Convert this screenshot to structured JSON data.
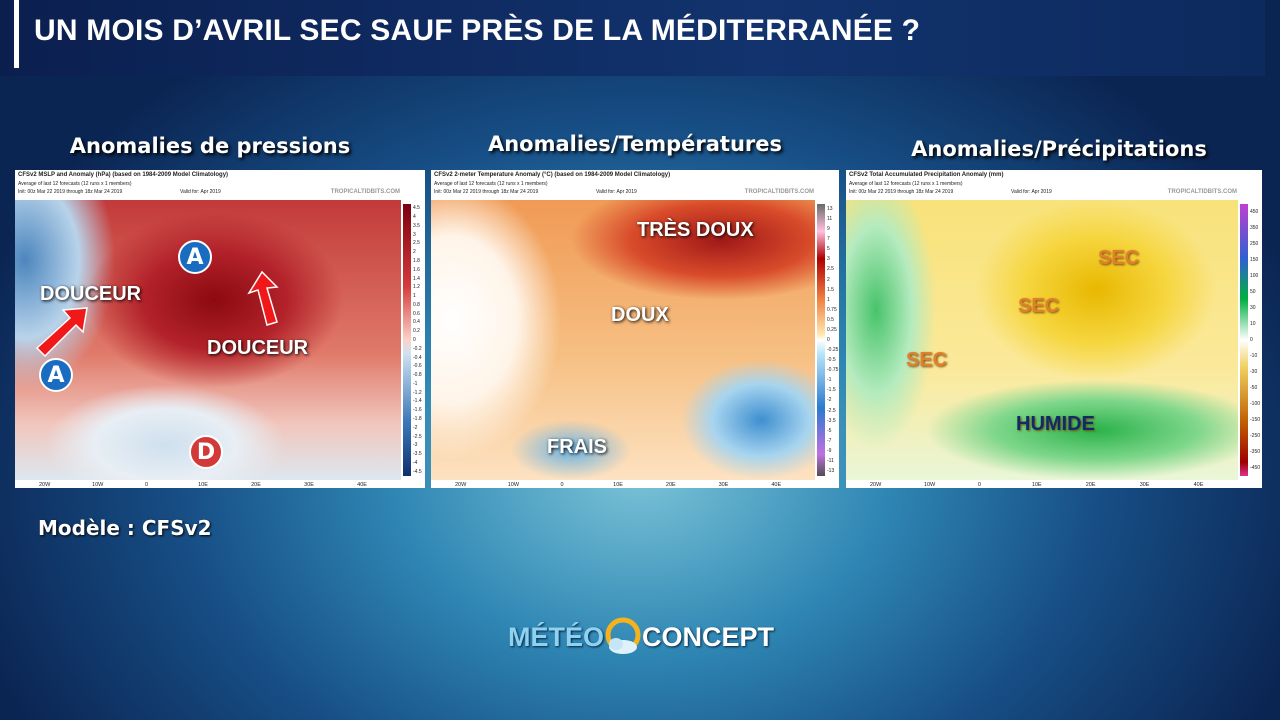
{
  "header": {
    "title": "UN MOIS D’AVRIL SEC SAUF PRÈS DE LA MÉDITERRANÉE ?"
  },
  "panels": [
    {
      "title": "Anomalies de pressions",
      "map_title": "CFSv2 MSLP and Anomaly (hPa) (based on 1984-2009 Model Climatology)",
      "map_subtitle": "Average of last 12 forecasts (12 runs x 1 members)",
      "init": "Init: 00z Mar 22 2019 through 18z Mar 24 2019",
      "valid": "Valid for: Apr 2019",
      "source": "TROPICALTIDBITS.COM",
      "colorbar": [
        "4.5",
        "4",
        "3.5",
        "3",
        "2.5",
        "2",
        "1.8",
        "1.6",
        "1.4",
        "1.2",
        "1",
        "0.8",
        "0.6",
        "0.4",
        "0.2",
        "0",
        "-0.2",
        "-0.4",
        "-0.6",
        "-0.8",
        "-1",
        "-1.2",
        "-1.4",
        "-1.6",
        "-1.8",
        "-2",
        "-2.5",
        "-3",
        "-3.5",
        "-4",
        "-4.5"
      ],
      "labels": [
        "DOUCEUR",
        "DOUCEUR"
      ],
      "symbols": [
        "A",
        "A",
        "D"
      ]
    },
    {
      "title": "Anomalies/Températures",
      "map_title": "CFSv2 2-meter Temperature Anomaly (°C) (based on 1984-2009 Model Climatology)",
      "map_subtitle": "Average of last 12 forecasts (12 runs x 1 members)",
      "init": "Init: 00z Mar 22 2019 through 18z Mar 24 2019",
      "valid": "Valid for: Apr 2019",
      "source": "TROPICALTIDBITS.COM",
      "colorbar": [
        "13",
        "11",
        "9",
        "7",
        "5",
        "3",
        "2.5",
        "2",
        "1.5",
        "1",
        "0.75",
        "0.5",
        "0.25",
        "0",
        "-0.25",
        "-0.5",
        "-0.75",
        "-1",
        "-1.5",
        "-2",
        "-2.5",
        "-3.5",
        "-5",
        "-7",
        "-9",
        "-11",
        "-13"
      ],
      "labels": [
        "TRÈS DOUX",
        "DOUX",
        "FRAIS"
      ],
      "symbols": []
    },
    {
      "title": "Anomalies/Précipitations",
      "map_title": "CFSv2 Total Accumulated Precipitation Anomaly (mm)",
      "map_subtitle": "Average of last 12 forecasts (12 runs x 1 members)",
      "init": "Init: 00z Mar 22 2019 through 18z Mar 24 2019",
      "valid": "Valid for: Apr 2019",
      "source": "TROPICALTIDBITS.COM",
      "colorbar": [
        "450",
        "350",
        "250",
        "150",
        "100",
        "50",
        "30",
        "10",
        "0",
        "-10",
        "-30",
        "-50",
        "-100",
        "-150",
        "-250",
        "-350",
        "-450"
      ],
      "labels": [
        "SEC",
        "SEC",
        "SEC",
        "HUMIDE"
      ],
      "symbols": []
    }
  ],
  "longitudes": [
    "20W",
    "10W",
    "0",
    "10E",
    "20E",
    "30E",
    "40E"
  ],
  "model": "Modèle : CFSv2",
  "logo": {
    "left": "MÉTÉO",
    "right": "CONCEPT"
  }
}
